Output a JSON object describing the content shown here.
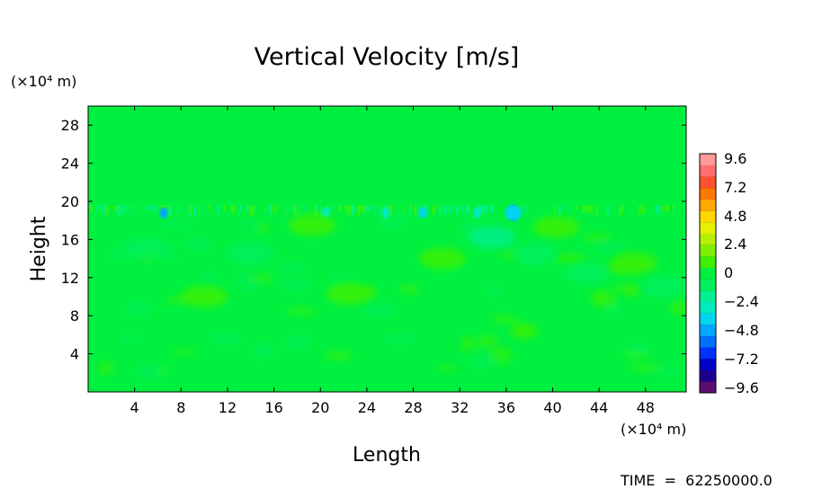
{
  "chart_data": {
    "type": "heatmap",
    "title": "Vertical Velocity [m/s]",
    "xlabel": "Length",
    "ylabel": "Height",
    "x_unit_label": "(×10⁴ m)",
    "y_unit_label": "(×10⁴ m)",
    "xlim": [
      0,
      51.5
    ],
    "ylim": [
      0,
      30
    ],
    "x_ticks": [
      4,
      8,
      12,
      16,
      20,
      24,
      28,
      32,
      36,
      40,
      44,
      48
    ],
    "y_ticks": [
      4,
      8,
      12,
      16,
      20,
      24,
      28
    ],
    "x_tick_labels": [
      "4",
      "8",
      "12",
      "16",
      "20",
      "24",
      "28",
      "32",
      "36",
      "40",
      "44",
      "48"
    ],
    "y_tick_labels": [
      "4",
      "8",
      "12",
      "16",
      "20",
      "24",
      "28"
    ],
    "colorbar": {
      "range": [
        -9.6,
        9.6
      ],
      "tick_labels": [
        "9.6",
        "7.2",
        "4.8",
        "2.4",
        "0",
        "−2.4",
        "−4.8",
        "−7.2",
        "−9.6"
      ],
      "levels": 21,
      "colors": [
        "#5a1070",
        "#1e0090",
        "#0000c8",
        "#0032ff",
        "#0070ff",
        "#00a8ff",
        "#00d6f0",
        "#00ecc0",
        "#00f090",
        "#00f060",
        "#00f040",
        "#40f000",
        "#7cf000",
        "#b4f000",
        "#e6f000",
        "#ffd800",
        "#ffa800",
        "#ff7800",
        "#ff5030",
        "#ff6e6e",
        "#ff9a9a"
      ]
    },
    "background_value": -0.4,
    "features": [
      {
        "x": 36.6,
        "y": 18.8,
        "value": -7.5,
        "shape": "core"
      },
      {
        "x": 36.6,
        "y": 18.8,
        "value": -4.0,
        "shape": "halo"
      },
      {
        "x": 6.5,
        "y": 18.8,
        "value": -4.5,
        "shape": "core"
      },
      {
        "x": 28.8,
        "y": 18.8,
        "value": -3.5,
        "shape": "core"
      },
      {
        "x": 20.5,
        "y": 18.8,
        "value": -3.0,
        "shape": "core"
      },
      {
        "x": 25.6,
        "y": 18.8,
        "value": -3.0,
        "shape": "core"
      },
      {
        "x": 33.5,
        "y": 18.8,
        "value": -3.0,
        "shape": "core"
      },
      {
        "x": 40.3,
        "y": 17.3,
        "value": 1.3,
        "shape": "blob"
      },
      {
        "x": 34.8,
        "y": 16.2,
        "value": -1.9,
        "shape": "blob"
      },
      {
        "x": 38.5,
        "y": 14.5,
        "value": -1.2,
        "shape": "blob"
      },
      {
        "x": 43.0,
        "y": 12.5,
        "value": -1.3,
        "shape": "blob"
      },
      {
        "x": 19.3,
        "y": 17.5,
        "value": 0.9,
        "shape": "blob"
      },
      {
        "x": 22.5,
        "y": 10.3,
        "value": 0.6,
        "shape": "blob"
      },
      {
        "x": 47.0,
        "y": 13.5,
        "value": 0.8,
        "shape": "blob"
      },
      {
        "x": 49.5,
        "y": 11.0,
        "value": -1.0,
        "shape": "blob"
      },
      {
        "x": 10.0,
        "y": 10.0,
        "value": 0.5,
        "shape": "blob"
      },
      {
        "x": 14.0,
        "y": 14.5,
        "value": -0.9,
        "shape": "blob"
      },
      {
        "x": 5.0,
        "y": 15.0,
        "value": -0.9,
        "shape": "blob"
      },
      {
        "x": 30.5,
        "y": 14.0,
        "value": 0.5,
        "shape": "blob"
      }
    ]
  },
  "time_label": "TIME  =  62250000.0"
}
